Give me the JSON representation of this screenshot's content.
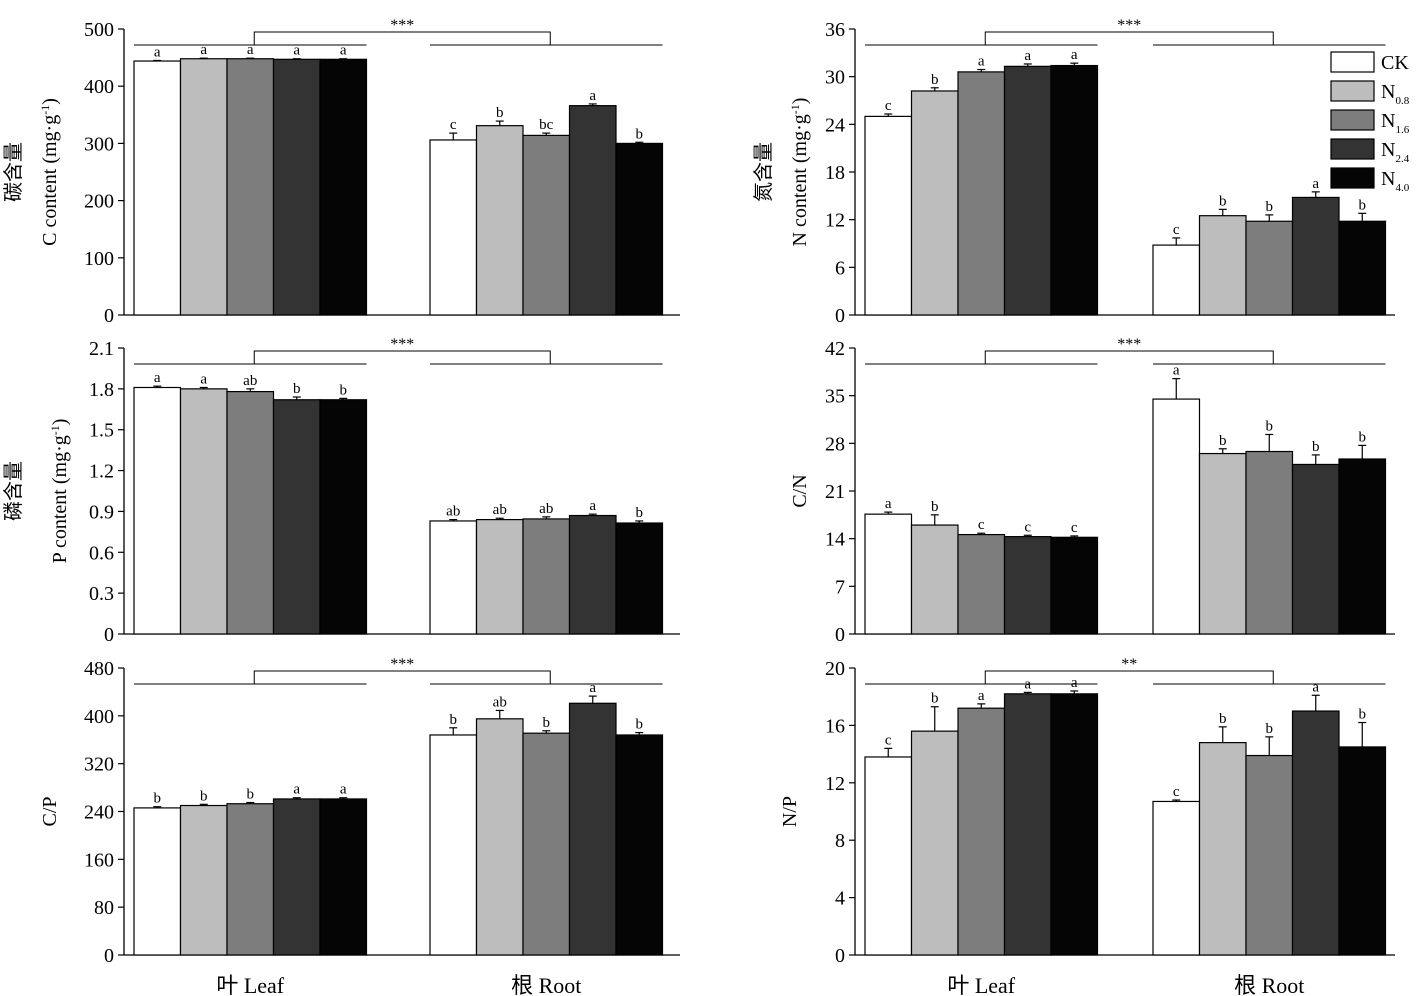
{
  "colors": {
    "CK": "#ffffff",
    "N0.8": "#bdbdbd",
    "N1.6": "#7d7d7d",
    "N2.4": "#333333",
    "N4.0": "#050505"
  },
  "legend": {
    "entries": [
      {
        "key": "CK",
        "main": "CK",
        "sub": ""
      },
      {
        "key": "N0.8",
        "main": "N",
        "sub": "0.8"
      },
      {
        "key": "N1.6",
        "main": "N",
        "sub": "1.6"
      },
      {
        "key": "N2.4",
        "main": "N",
        "sub": "2.4"
      },
      {
        "key": "N4.0",
        "main": "N",
        "sub": "4.0"
      }
    ]
  },
  "chart_data": [
    {
      "id": "carbon",
      "type": "bar",
      "ylabel_cn": "碳含量",
      "ylabel_en": "C content (mg·g",
      "ylabel_sup": "-1",
      "ylabel_close": ")",
      "ylim": [
        0,
        500
      ],
      "yticks": [
        "0",
        "100",
        "200",
        "300",
        "400",
        "500"
      ],
      "yvals": [
        0,
        100,
        200,
        300,
        400,
        500
      ],
      "categories": [
        "叶 Leaf",
        "根 Root"
      ],
      "show_categories": false,
      "series_names": [
        "CK",
        "N0.8",
        "N1.6",
        "N2.4",
        "N4.0"
      ],
      "groups": [
        {
          "values": [
            444,
            448,
            448,
            447,
            447
          ],
          "errors": [
            1,
            1,
            1,
            1,
            1
          ],
          "letters": [
            "a",
            "a",
            "a",
            "a",
            "a"
          ]
        },
        {
          "values": [
            306,
            331,
            314,
            366,
            300
          ],
          "errors": [
            12,
            8,
            4,
            3,
            2
          ],
          "letters": [
            "c",
            "b",
            "bc",
            "a",
            "b"
          ]
        }
      ],
      "significance": "***"
    },
    {
      "id": "nitrogen",
      "type": "bar",
      "ylabel_cn": "氮含量",
      "ylabel_en": "N content (mg·g",
      "ylabel_sup": "-1",
      "ylabel_close": ")",
      "ylim": [
        0,
        36
      ],
      "yticks": [
        "0",
        "6",
        "12",
        "18",
        "24",
        "30",
        "36"
      ],
      "yvals": [
        0,
        6,
        12,
        18,
        24,
        30,
        36
      ],
      "categories": [
        "叶 Leaf",
        "根 Root"
      ],
      "show_categories": false,
      "series_names": [
        "CK",
        "N0.8",
        "N1.6",
        "N2.4",
        "N4.0"
      ],
      "groups": [
        {
          "values": [
            25.0,
            28.2,
            30.6,
            31.3,
            31.4
          ],
          "errors": [
            0.3,
            0.4,
            0.3,
            0.3,
            0.3
          ],
          "letters": [
            "c",
            "b",
            "a",
            "a",
            "a"
          ]
        },
        {
          "values": [
            8.8,
            12.5,
            11.8,
            14.8,
            11.8
          ],
          "errors": [
            0.9,
            0.8,
            0.8,
            0.7,
            1.0
          ],
          "letters": [
            "c",
            "b",
            "b",
            "a",
            "b"
          ]
        }
      ],
      "significance": "***"
    },
    {
      "id": "phosphorus",
      "type": "bar",
      "ylabel_cn": "磷含量",
      "ylabel_en": "P content (mg·g",
      "ylabel_sup": "-1",
      "ylabel_close": ")",
      "ylim": [
        0,
        2.1
      ],
      "yticks": [
        "0",
        "0.3",
        "0.6",
        "0.9",
        "1.2",
        "1.5",
        "1.8",
        "2.1"
      ],
      "yvals": [
        0,
        0.3,
        0.6,
        0.9,
        1.2,
        1.5,
        1.8,
        2.1
      ],
      "categories": [
        "叶 Leaf",
        "根 Root"
      ],
      "show_categories": false,
      "series_names": [
        "CK",
        "N0.8",
        "N1.6",
        "N2.4",
        "N4.0"
      ],
      "groups": [
        {
          "values": [
            1.81,
            1.8,
            1.78,
            1.72,
            1.72
          ],
          "errors": [
            0.01,
            0.01,
            0.02,
            0.02,
            0.01
          ],
          "letters": [
            "a",
            "a",
            "ab",
            "b",
            "b"
          ]
        },
        {
          "values": [
            0.83,
            0.84,
            0.845,
            0.87,
            0.815
          ],
          "errors": [
            0.01,
            0.01,
            0.015,
            0.01,
            0.015
          ],
          "letters": [
            "ab",
            "ab",
            "ab",
            "a",
            "b"
          ]
        }
      ],
      "significance": "***"
    },
    {
      "id": "cn_ratio",
      "type": "bar",
      "ylabel_cn": "",
      "ylabel_en": "C/N",
      "ylabel_sup": "",
      "ylabel_close": "",
      "ylim": [
        0,
        42
      ],
      "yticks": [
        "0",
        "7",
        "14",
        "21",
        "28",
        "35",
        "42"
      ],
      "yvals": [
        0,
        7,
        14,
        21,
        28,
        35,
        42
      ],
      "categories": [
        "叶 Leaf",
        "根 Root"
      ],
      "show_categories": false,
      "series_names": [
        "CK",
        "N0.8",
        "N1.6",
        "N2.4",
        "N4.0"
      ],
      "groups": [
        {
          "values": [
            17.6,
            16.0,
            14.6,
            14.3,
            14.2
          ],
          "errors": [
            0.3,
            1.5,
            0.2,
            0.2,
            0.2
          ],
          "letters": [
            "a",
            "b",
            "c",
            "c",
            "c"
          ]
        },
        {
          "values": [
            34.5,
            26.5,
            26.8,
            24.9,
            25.7
          ],
          "errors": [
            3.0,
            0.7,
            2.5,
            1.4,
            2.0
          ],
          "letters": [
            "a",
            "b",
            "b",
            "b",
            "b"
          ]
        }
      ],
      "significance": "***"
    },
    {
      "id": "cp_ratio",
      "type": "bar",
      "ylabel_cn": "",
      "ylabel_en": "C/P",
      "ylabel_sup": "",
      "ylabel_close": "",
      "ylim": [
        0,
        480
      ],
      "yticks": [
        "0",
        "80",
        "160",
        "240",
        "320",
        "400",
        "480"
      ],
      "yvals": [
        0,
        80,
        160,
        240,
        320,
        400,
        480
      ],
      "categories": [
        "叶 Leaf",
        "根 Root"
      ],
      "show_categories": true,
      "series_names": [
        "CK",
        "N0.8",
        "N1.6",
        "N2.4",
        "N4.0"
      ],
      "groups": [
        {
          "values": [
            246,
            250,
            253,
            261,
            261
          ],
          "errors": [
            2,
            2,
            2,
            2,
            2
          ],
          "letters": [
            "b",
            "b",
            "b",
            "a",
            "a"
          ]
        },
        {
          "values": [
            368,
            395,
            371,
            421,
            368
          ],
          "errors": [
            12,
            14,
            4,
            12,
            4
          ],
          "letters": [
            "b",
            "ab",
            "b",
            "a",
            "b"
          ]
        }
      ],
      "significance": "***"
    },
    {
      "id": "np_ratio",
      "type": "bar",
      "ylabel_cn": "",
      "ylabel_en": "N/P",
      "ylabel_sup": "",
      "ylabel_close": "",
      "ylim": [
        0,
        20
      ],
      "yticks": [
        "0",
        "4",
        "8",
        "12",
        "16",
        "20"
      ],
      "yvals": [
        0,
        4,
        8,
        12,
        16,
        20
      ],
      "categories": [
        "叶 Leaf",
        "根 Root"
      ],
      "show_categories": true,
      "series_names": [
        "CK",
        "N0.8",
        "N1.6",
        "N2.4",
        "N4.0"
      ],
      "groups": [
        {
          "values": [
            13.8,
            15.6,
            17.2,
            18.2,
            18.2
          ],
          "errors": [
            0.6,
            1.7,
            0.3,
            0.1,
            0.2
          ],
          "letters": [
            "c",
            "b",
            "a",
            "a",
            "a"
          ]
        },
        {
          "values": [
            10.7,
            14.8,
            13.9,
            17.0,
            14.5
          ],
          "errors": [
            0.1,
            1.1,
            1.3,
            1.1,
            1.7
          ],
          "letters": [
            "c",
            "b",
            "b",
            "a",
            "b"
          ]
        }
      ],
      "significance": "**"
    }
  ]
}
